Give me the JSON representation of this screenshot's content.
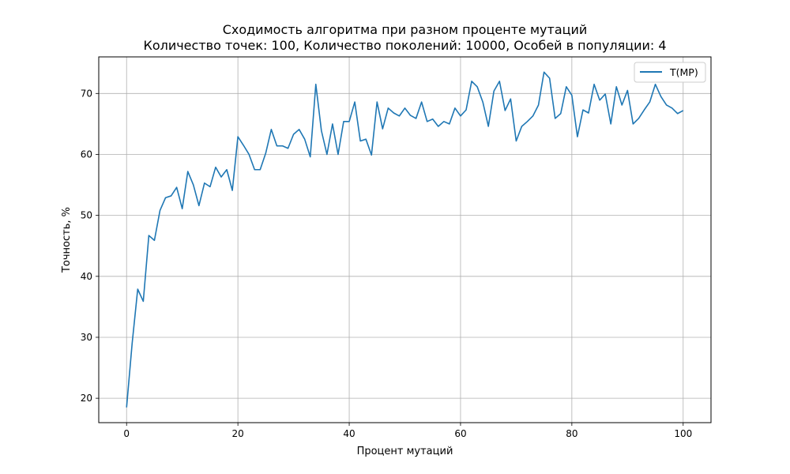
{
  "chart_data": {
    "type": "line",
    "title": "Сходимость алгоритма при разном проценте мутаций",
    "subtitle": "Количество точек: 100, Количество поколений: 10000, Особей в популяции: 4",
    "xlabel": "Процент мутаций",
    "ylabel": "Точность, %",
    "xlim": [
      -5,
      105
    ],
    "ylim": [
      16,
      76
    ],
    "xticks": [
      0,
      20,
      40,
      60,
      80,
      100
    ],
    "yticks": [
      20,
      30,
      40,
      50,
      60,
      70
    ],
    "grid": true,
    "legend_position": "top-right",
    "series": [
      {
        "name": "T(MP)",
        "color": "#1f77b4",
        "x": [
          0,
          1,
          2,
          3,
          4,
          5,
          6,
          7,
          8,
          9,
          10,
          11,
          12,
          13,
          14,
          15,
          16,
          17,
          18,
          19,
          20,
          21,
          22,
          23,
          24,
          25,
          26,
          27,
          28,
          29,
          30,
          31,
          32,
          33,
          34,
          35,
          36,
          37,
          38,
          39,
          40,
          41,
          42,
          43,
          44,
          45,
          46,
          47,
          48,
          49,
          50,
          51,
          52,
          53,
          54,
          55,
          56,
          57,
          58,
          59,
          60,
          61,
          62,
          63,
          64,
          65,
          66,
          67,
          68,
          69,
          70,
          71,
          72,
          73,
          74,
          75,
          76,
          77,
          78,
          79,
          80,
          81,
          82,
          83,
          84,
          85,
          86,
          87,
          88,
          89,
          90,
          91,
          92,
          93,
          94,
          95,
          96,
          97,
          98,
          99,
          100
        ],
        "values": [
          18.5,
          29,
          37.9,
          35.9,
          46.7,
          45.9,
          50.8,
          52.9,
          53.2,
          54.6,
          51.1,
          57.2,
          55,
          51.6,
          55.3,
          54.7,
          57.9,
          56.3,
          57.5,
          54.1,
          62.9,
          61.5,
          60,
          57.5,
          57.5,
          60.2,
          64.1,
          61.4,
          61.4,
          61,
          63.3,
          64.1,
          62.5,
          59.6,
          71.5,
          63.9,
          60,
          65,
          60,
          65.4,
          65.4,
          68.6,
          62.2,
          62.5,
          59.9,
          68.6,
          64.2,
          67.6,
          66.8,
          66.3,
          67.6,
          66.4,
          65.9,
          68.6,
          65.4,
          65.8,
          64.6,
          65.4,
          65,
          67.6,
          66.3,
          67.3,
          72,
          71.1,
          68.6,
          64.6,
          70.4,
          72,
          67.2,
          69.1,
          62.2,
          64.6,
          65.4,
          66.3,
          68.1,
          73.5,
          72.5,
          65.9,
          66.7,
          71.1,
          69.7,
          62.9,
          67.3,
          66.8,
          71.5,
          68.9,
          69.9,
          65,
          71.1,
          68.1,
          70.5,
          65,
          65.9,
          67.3,
          68.6,
          71.5,
          69.5,
          68.1,
          67.6,
          66.7,
          67.2
        ]
      }
    ]
  }
}
